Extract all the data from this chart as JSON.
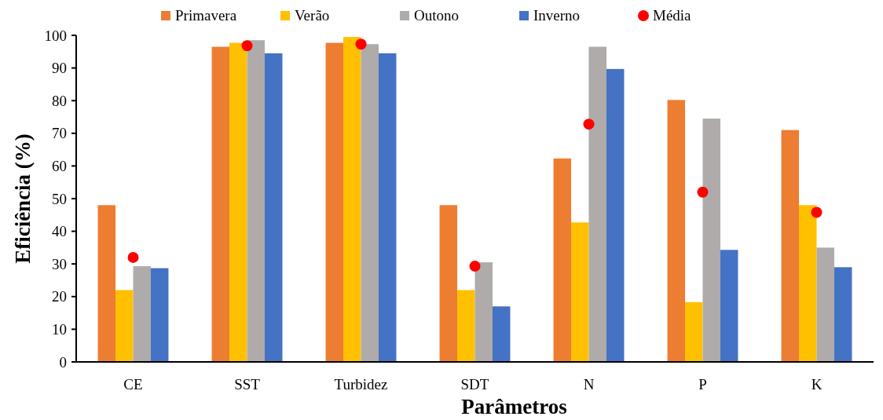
{
  "chart_data": {
    "type": "bar",
    "xlabel": "Parâmetros",
    "ylabel": "Eficiência (%)",
    "categories": [
      "CE",
      "SST",
      "Turbidez",
      "SDT",
      "N",
      "P",
      "K"
    ],
    "series": [
      {
        "name": "Primavera",
        "color": "#ed7d31",
        "values": [
          48,
          96.5,
          97.7,
          48,
          62.3,
          80.2,
          71
        ]
      },
      {
        "name": "Verão",
        "color": "#ffc000",
        "values": [
          22,
          97.7,
          99.5,
          22,
          42.7,
          18.3,
          48
        ]
      },
      {
        "name": "Outono",
        "color": "#afabab",
        "values": [
          29.3,
          98.5,
          97.3,
          30.5,
          96.5,
          74.5,
          35
        ]
      },
      {
        "name": "Inverno",
        "color": "#4472c4",
        "values": [
          28.7,
          94.5,
          94.5,
          17,
          89.7,
          34.3,
          29
        ]
      },
      {
        "name": "Média",
        "type": "scatter",
        "color": "#ff0000",
        "marker": "circle",
        "x": [
          "CE",
          "SST",
          "Turbidez",
          "SDT",
          "N",
          "P",
          "K"
        ],
        "values": [
          32,
          96.8,
          97.3,
          29.3,
          72.8,
          52,
          45.8
        ]
      }
    ],
    "ylim": [
      0,
      100
    ],
    "yticks": [
      0,
      10,
      20,
      30,
      40,
      50,
      60,
      70,
      80,
      90,
      100
    ],
    "legend": "top",
    "grid": false
  }
}
